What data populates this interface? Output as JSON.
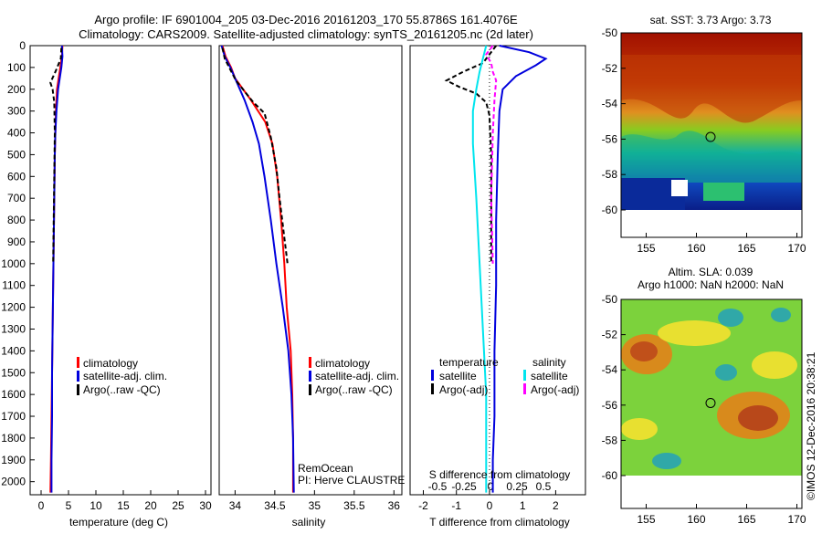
{
  "page": {
    "title_line1": "Argo profile: IF 6901004_205 03-Dec-2016 20161203_170 55.8786S 161.4076E",
    "title_line2": "Climatology: CARS2009. Satellite-adjusted climatology: synTS_20161205.nc (2d later)",
    "watermark": "©IMOS 12-Dec-2016 20:38:21",
    "remocean_line1": "RemOcean",
    "remocean_line2": "PI: Herve CLAUSTRE"
  },
  "colors": {
    "climatology": "#ff0000",
    "satellite": "#0000dd",
    "argo": "#000000",
    "satellite_s": "#00e5ee",
    "argo_s": "#ff00ff"
  },
  "legend_tp": [
    {
      "label": "climatology",
      "color": "#ff0000"
    },
    {
      "label": "satellite-adj. clim.",
      "color": "#0000dd"
    },
    {
      "label": "Argo(..raw -QC)",
      "color": "#000000"
    }
  ],
  "legend_diff": {
    "t_header": "temperature",
    "s_header": "salinity",
    "t_items": [
      {
        "label": "satellite",
        "color": "#0000dd"
      },
      {
        "label": "Argo(-adj)",
        "color": "#000000"
      }
    ],
    "s_items": [
      {
        "label": "satellite",
        "color": "#00e5ee"
      },
      {
        "label": "Argo(-adj)",
        "color": "#ff00ff"
      }
    ]
  },
  "chart_data": [
    {
      "type": "line",
      "xlabel": "temperature (deg C)",
      "xlim": [
        -2,
        31
      ],
      "ylim": [
        2060,
        0
      ],
      "xticks": [
        0,
        5,
        10,
        15,
        20,
        25,
        30
      ],
      "yticks": [
        0,
        100,
        200,
        300,
        400,
        500,
        600,
        700,
        800,
        900,
        1000,
        1100,
        1200,
        1300,
        1400,
        1500,
        1600,
        1700,
        1800,
        1900,
        2000
      ],
      "series": [
        {
          "name": "climatology",
          "color": "#ff0000",
          "x": [
            3.9,
            3.8,
            3.5,
            2.9,
            2.7,
            2.6,
            2.5,
            2.4,
            2.3,
            2.2,
            2.1,
            2.0,
            1.9,
            1.8,
            1.7
          ],
          "y": [
            0,
            50,
            100,
            200,
            300,
            400,
            500,
            700,
            900,
            1100,
            1300,
            1500,
            1700,
            1900,
            2050
          ]
        },
        {
          "name": "satellite-adj. clim.",
          "color": "#0000dd",
          "x": [
            3.8,
            3.9,
            3.7,
            3.1,
            2.8,
            2.6,
            2.5,
            2.4,
            2.3,
            2.2,
            2.1,
            2.0,
            2.0,
            1.9,
            1.9
          ],
          "y": [
            0,
            50,
            100,
            200,
            300,
            400,
            500,
            700,
            900,
            1100,
            1300,
            1500,
            1700,
            1900,
            2050
          ]
        },
        {
          "name": "Argo(..raw -QC)",
          "color": "#000000",
          "dash": true,
          "x": [
            3.7,
            3.6,
            2.6,
            1.7,
            2.1,
            2.4,
            2.5,
            2.4,
            2.3,
            2.2
          ],
          "y": [
            10,
            60,
            120,
            170,
            200,
            260,
            400,
            600,
            800,
            1000
          ]
        }
      ]
    },
    {
      "type": "line",
      "xlabel": "salinity",
      "xlim": [
        33.8,
        36.1
      ],
      "ylim": [
        2060,
        0
      ],
      "xticks": [
        34,
        34.5,
        35,
        35.5,
        36
      ],
      "series": [
        {
          "name": "climatology",
          "color": "#ff0000",
          "x": [
            33.84,
            33.88,
            33.95,
            34.0,
            34.2,
            34.38,
            34.47,
            34.53,
            34.58,
            34.62,
            34.65,
            34.7,
            34.72,
            34.73,
            34.73
          ],
          "y": [
            0,
            50,
            100,
            150,
            250,
            350,
            450,
            600,
            800,
            1000,
            1200,
            1400,
            1600,
            1800,
            2050
          ]
        },
        {
          "name": "satellite-adj. clim.",
          "color": "#0000dd",
          "x": [
            33.83,
            33.87,
            33.94,
            34.0,
            34.12,
            34.22,
            34.3,
            34.37,
            34.45,
            34.52,
            34.6,
            34.67,
            34.71,
            34.73,
            34.74
          ],
          "y": [
            0,
            50,
            100,
            150,
            250,
            350,
            450,
            600,
            800,
            1000,
            1200,
            1400,
            1600,
            1800,
            2050
          ]
        },
        {
          "name": "Argo(..raw -QC)",
          "color": "#000000",
          "dash": true,
          "x": [
            33.84,
            33.87,
            33.94,
            34.01,
            34.23,
            34.37,
            34.45,
            34.52,
            34.56,
            34.62,
            34.66
          ],
          "y": [
            10,
            60,
            110,
            160,
            260,
            310,
            420,
            560,
            700,
            880,
            1000
          ]
        }
      ]
    },
    {
      "type": "line",
      "xlabel": "T difference from climatology",
      "xlabel_top": "S difference from climatology",
      "xlim": [
        -2.4,
        2.9
      ],
      "ylim": [
        2060,
        0
      ],
      "xticks": [
        -2,
        -1,
        0,
        1,
        2
      ],
      "xticks_top": [
        -0.5,
        -0.25,
        0,
        0.25,
        0.5
      ],
      "series": [
        {
          "name": "satellite",
          "color": "#0000dd",
          "x": [
            0.3,
            1.2,
            1.7,
            1.4,
            0.8,
            0.4,
            0.3,
            0.25,
            0.2,
            0.2,
            0.15,
            0.15,
            0.1,
            0.1
          ],
          "y": [
            0,
            30,
            60,
            90,
            140,
            200,
            300,
            500,
            800,
            1100,
            1400,
            1700,
            1900,
            2050
          ]
        },
        {
          "name": "Argo(-adj)",
          "color": "#000000",
          "dash": true,
          "x": [
            0.2,
            -0.2,
            -0.8,
            -1.3,
            -0.9,
            -0.4,
            -0.1,
            0.0,
            0.05,
            0.05,
            0.05
          ],
          "y": [
            0,
            80,
            120,
            160,
            190,
            220,
            260,
            320,
            500,
            800,
            1000
          ]
        },
        {
          "name": "satellite",
          "color": "#00e5ee",
          "x": [
            -0.1,
            -0.2,
            -0.3,
            -0.4,
            -0.5,
            -0.5,
            -0.4,
            -0.3,
            -0.2,
            -0.1,
            -0.1,
            -0.1
          ],
          "y": [
            0,
            60,
            120,
            200,
            300,
            450,
            700,
            1000,
            1300,
            1600,
            1900,
            2050
          ]
        },
        {
          "name": "Argo(-adj)",
          "color": "#ff00ff",
          "dash": true,
          "x": [
            0.1,
            -0.1,
            0.05,
            0.1,
            0.2,
            0.15,
            0.1,
            0.05,
            0.1
          ],
          "y": [
            0,
            40,
            80,
            120,
            160,
            250,
            400,
            700,
            1000
          ]
        }
      ]
    },
    {
      "type": "heatmap",
      "title": "sat. SST: 3.73 Argo: 3.73",
      "xlim": [
        152.5,
        170.5
      ],
      "ylim": [
        -60.2,
        -50
      ],
      "xticks": [
        155,
        160,
        165,
        170
      ],
      "yticks": [
        -50,
        -52,
        -54,
        -56,
        -58,
        -60
      ],
      "argo_position": {
        "lon": 161.4076,
        "lat": -55.8786
      }
    },
    {
      "type": "heatmap",
      "title_line1": "Altim. SLA: 0.039",
      "title_line2": "Argo h1000: NaN h2000: NaN",
      "xlim": [
        152.5,
        170.5
      ],
      "ylim": [
        -61.4,
        -50
      ],
      "xticks": [
        155,
        160,
        165,
        170
      ],
      "yticks": [
        -50,
        -52,
        -54,
        -56,
        -58,
        -60
      ],
      "argo_position": {
        "lon": 161.4076,
        "lat": -55.8786
      }
    }
  ]
}
